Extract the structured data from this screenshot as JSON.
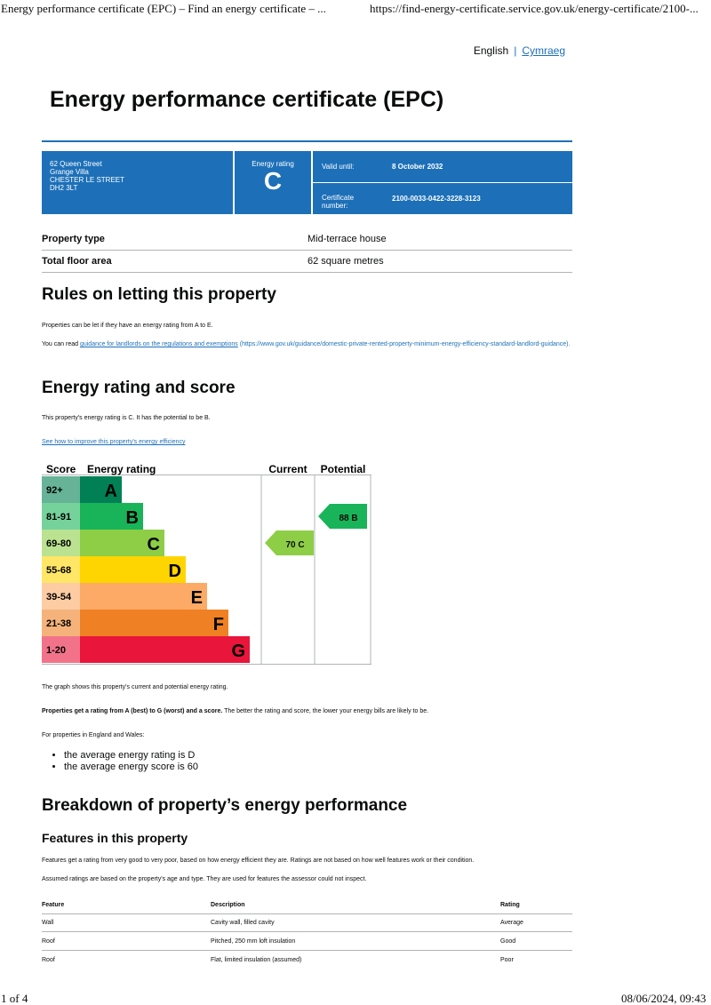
{
  "print_header": {
    "title": "Energy performance certificate (EPC) – Find an energy certificate – ...",
    "url": "https://find-energy-certificate.service.gov.uk/energy-certificate/2100-..."
  },
  "language": {
    "current": "English",
    "other": "Cymraeg"
  },
  "page_title": "Energy performance certificate (EPC)",
  "certificate": {
    "address_lines": [
      "62 Queen Street",
      "Grange Villa",
      "CHESTER LE STREET",
      "DH2 3LT"
    ],
    "energy_rating_label": "Energy rating",
    "energy_rating": "C",
    "valid_until_label": "Valid until:",
    "valid_until": "8 October 2032",
    "cert_number_label": "Certificate number:",
    "cert_number": "2100-0033-0422-3228-3123"
  },
  "summary": [
    {
      "label": "Property type",
      "value": "Mid-terrace house"
    },
    {
      "label": "Total floor area",
      "value": "62 square metres"
    }
  ],
  "letting": {
    "heading": "Rules on letting this property",
    "p1": "Properties can be let if they have an energy rating from A to E.",
    "p2_prefix": "You can read ",
    "p2_link": "guidance for landlords on the regulations and exemptions",
    "p2_url_text": "(https://www.gov.uk/guidance/domestic-private-rented-property-minimum-energy-efficiency-standard-landlord-guidance)."
  },
  "rating_section": {
    "heading": "Energy rating and score",
    "p1": "This property's energy rating is C. It has the potential to be B.",
    "link": "See how to improve this property's energy efficiency"
  },
  "chart_data": {
    "type": "epc-rating",
    "headers": {
      "score": "Score",
      "rating": "Energy rating",
      "current": "Current",
      "potential": "Potential"
    },
    "bands": [
      {
        "score": "92+",
        "letter": "A",
        "color": "#008054"
      },
      {
        "score": "81-91",
        "letter": "B",
        "color": "#19b459"
      },
      {
        "score": "69-80",
        "letter": "C",
        "color": "#8dce46"
      },
      {
        "score": "55-68",
        "letter": "D",
        "color": "#ffd500"
      },
      {
        "score": "39-54",
        "letter": "E",
        "color": "#fcaa65"
      },
      {
        "score": "21-38",
        "letter": "F",
        "color": "#ef8023"
      },
      {
        "score": "1-20",
        "letter": "G",
        "color": "#e9153b"
      }
    ],
    "current": {
      "score": 70,
      "letter": "C",
      "label": "70  C"
    },
    "potential": {
      "score": 88,
      "letter": "B",
      "label": "88  B"
    }
  },
  "after_chart": {
    "p1": "The graph shows this property's current and potential energy rating.",
    "p2_bold": "Properties get a rating from A (best) to G (worst) and a score.",
    "p2_rest": " The better the rating and score, the lower your energy bills are likely to be.",
    "p3": "For properties in England and Wales:",
    "bullets": [
      "the average energy rating is D",
      "the average energy score is 60"
    ]
  },
  "breakdown": {
    "heading": "Breakdown of property’s energy performance",
    "subheading": "Features in this property",
    "p1": "Features get a rating from very good to very poor, based on how energy efficient they are. Ratings are not based on how well features work or their condition.",
    "p2": "Assumed ratings are based on the property's age and type. They are used for features the assessor could not inspect.",
    "columns": [
      "Feature",
      "Description",
      "Rating"
    ],
    "rows": [
      [
        "Wall",
        "Cavity wall, filled cavity",
        "Average"
      ],
      [
        "Roof",
        "Pitched, 250 mm loft insulation",
        "Good"
      ],
      [
        "Roof",
        "Flat, limited insulation (assumed)",
        "Poor"
      ]
    ]
  },
  "print_footer": {
    "page": "1 of 4",
    "datetime": "08/06/2024, 09:43"
  }
}
